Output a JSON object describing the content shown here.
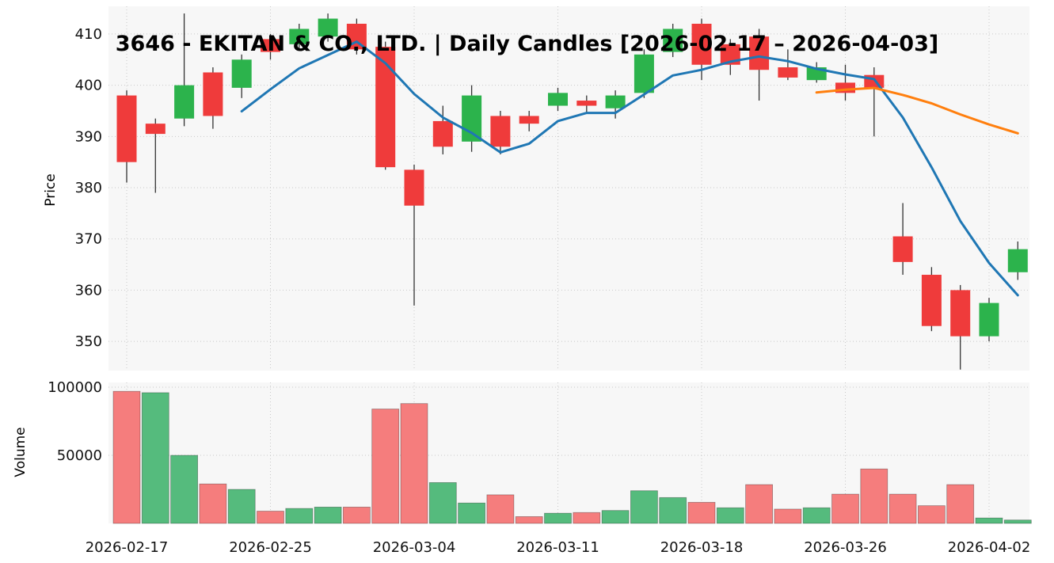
{
  "title": "3646 - EKITAN & CO., LTD. | Daily Candles [2026-02-17 – 2026-04-03]",
  "price_axis": {
    "label": "Price",
    "ticks": [
      410,
      400,
      390,
      380,
      370,
      360,
      350
    ]
  },
  "volume_axis": {
    "label": "Volume",
    "ticks": [
      {
        "value": 100000,
        "label": "100000"
      },
      {
        "value": 50000,
        "label": "50000"
      }
    ]
  },
  "x_axis": {
    "tick_labels": [
      "2026-02-17",
      "2026-02-25",
      "2026-03-04",
      "2026-03-11",
      "2026-03-18",
      "2026-03-26",
      "2026-04-02"
    ],
    "tick_day_indices": [
      0,
      5,
      10,
      15,
      20,
      25,
      30
    ]
  },
  "colors": {
    "candle_up": "#2cb34c",
    "candle_down": "#ef3b3b",
    "volume_up": "#55bb7d",
    "volume_down": "#f57d7d",
    "ma_fast": "#1f77b4",
    "ma_slow": "#ff7f0e",
    "wick": "#333333",
    "grid": "#c9c9c9",
    "panel_bg": "#f7f7f7",
    "text": "#111111"
  },
  "chart_data": {
    "type": "candlestick",
    "panels": [
      "price",
      "volume"
    ],
    "price_range": [
      344.3,
      415.4
    ],
    "volume_range": [
      0,
      103500
    ],
    "overlays": [
      {
        "name": "SMA5",
        "window": 5,
        "color": "#1f77b4"
      },
      {
        "name": "SMA25",
        "window": 25,
        "color": "#ff7f0e"
      }
    ],
    "candles": [
      {
        "date": "2026-02-17",
        "open": 398,
        "high": 399,
        "low": 381,
        "close": 385,
        "volume": 97000,
        "volume_dir": "down"
      },
      {
        "date": "2026-02-18",
        "open": 392.5,
        "high": 393.5,
        "low": 379,
        "close": 390.5,
        "volume": 96000,
        "volume_dir": "up"
      },
      {
        "date": "2026-02-19",
        "open": 393.5,
        "high": 414,
        "low": 392,
        "close": 400,
        "volume": 50000,
        "volume_dir": "up"
      },
      {
        "date": "2026-02-20",
        "open": 402.5,
        "high": 403.5,
        "low": 391.5,
        "close": 394,
        "volume": 29000,
        "volume_dir": "down"
      },
      {
        "date": "2026-02-24",
        "open": 399.5,
        "high": 406,
        "low": 397.5,
        "close": 405,
        "volume": 25000,
        "volume_dir": "up"
      },
      {
        "date": "2026-02-25",
        "open": 409,
        "high": 410,
        "low": 405,
        "close": 406.5,
        "volume": 9000,
        "volume_dir": "down"
      },
      {
        "date": "2026-02-26",
        "open": 408,
        "high": 412,
        "low": 407,
        "close": 411,
        "volume": 11000,
        "volume_dir": "up"
      },
      {
        "date": "2026-02-27",
        "open": 409.5,
        "high": 414,
        "low": 408.5,
        "close": 413,
        "volume": 12000,
        "volume_dir": "up"
      },
      {
        "date": "2026-03-02",
        "open": 412,
        "high": 413,
        "low": 406,
        "close": 407,
        "volume": 12000,
        "volume_dir": "down"
      },
      {
        "date": "2026-03-03",
        "open": 407.5,
        "high": 408.5,
        "low": 383.5,
        "close": 384,
        "volume": 84000,
        "volume_dir": "down"
      },
      {
        "date": "2026-03-04",
        "open": 383.5,
        "high": 384.5,
        "low": 357,
        "close": 376.5,
        "volume": 88000,
        "volume_dir": "down"
      },
      {
        "date": "2026-03-05",
        "open": 393,
        "high": 396,
        "low": 386.5,
        "close": 388,
        "volume": 30000,
        "volume_dir": "up"
      },
      {
        "date": "2026-03-06",
        "open": 389,
        "high": 400,
        "low": 387,
        "close": 398,
        "volume": 15000,
        "volume_dir": "up"
      },
      {
        "date": "2026-03-09",
        "open": 394,
        "high": 395,
        "low": 386.5,
        "close": 388,
        "volume": 21000,
        "volume_dir": "down"
      },
      {
        "date": "2026-03-10",
        "open": 394,
        "high": 395,
        "low": 391,
        "close": 392.5,
        "volume": 5000,
        "volume_dir": "down"
      },
      {
        "date": "2026-03-11",
        "open": 396,
        "high": 399.5,
        "low": 395,
        "close": 398.5,
        "volume": 7500,
        "volume_dir": "up"
      },
      {
        "date": "2026-03-12",
        "open": 397,
        "high": 398,
        "low": 394.5,
        "close": 396,
        "volume": 8000,
        "volume_dir": "down"
      },
      {
        "date": "2026-03-13",
        "open": 395.5,
        "high": 399,
        "low": 393.5,
        "close": 398,
        "volume": 9500,
        "volume_dir": "up"
      },
      {
        "date": "2026-03-16",
        "open": 398.5,
        "high": 407,
        "low": 397.5,
        "close": 406,
        "volume": 24000,
        "volume_dir": "up"
      },
      {
        "date": "2026-03-17",
        "open": 406.5,
        "high": 412,
        "low": 405.5,
        "close": 411,
        "volume": 19000,
        "volume_dir": "up"
      },
      {
        "date": "2026-03-18",
        "open": 412,
        "high": 413,
        "low": 401,
        "close": 404,
        "volume": 15500,
        "volume_dir": "down"
      },
      {
        "date": "2026-03-19",
        "open": 408,
        "high": 409,
        "low": 402,
        "close": 404,
        "volume": 11500,
        "volume_dir": "up"
      },
      {
        "date": "2026-03-23",
        "open": 409.5,
        "high": 411,
        "low": 397,
        "close": 403,
        "volume": 28500,
        "volume_dir": "down"
      },
      {
        "date": "2026-03-24",
        "open": 403.5,
        "high": 407,
        "low": 401,
        "close": 401.5,
        "volume": 10500,
        "volume_dir": "down"
      },
      {
        "date": "2026-03-25",
        "open": 401,
        "high": 404.5,
        "low": 400.5,
        "close": 403.5,
        "volume": 11500,
        "volume_dir": "up"
      },
      {
        "date": "2026-03-26",
        "open": 400.5,
        "high": 404,
        "low": 397,
        "close": 398.5,
        "volume": 21500,
        "volume_dir": "down"
      },
      {
        "date": "2026-03-27",
        "open": 402,
        "high": 403.5,
        "low": 390,
        "close": 399.5,
        "volume": 40000,
        "volume_dir": "down"
      },
      {
        "date": "2026-03-30",
        "open": 370.5,
        "high": 377,
        "low": 363,
        "close": 365.5,
        "volume": 21500,
        "volume_dir": "down"
      },
      {
        "date": "2026-03-31",
        "open": 363,
        "high": 364.5,
        "low": 352,
        "close": 353,
        "volume": 13000,
        "volume_dir": "down"
      },
      {
        "date": "2026-04-01",
        "open": 360,
        "high": 361,
        "low": 344.5,
        "close": 351,
        "volume": 28500,
        "volume_dir": "down"
      },
      {
        "date": "2026-04-02",
        "open": 351,
        "high": 358.5,
        "low": 350,
        "close": 357.5,
        "volume": 4000,
        "volume_dir": "up"
      },
      {
        "date": "2026-04-03",
        "open": 363.5,
        "high": 369.5,
        "low": 362,
        "close": 368,
        "volume": 2500,
        "volume_dir": "up"
      }
    ]
  }
}
